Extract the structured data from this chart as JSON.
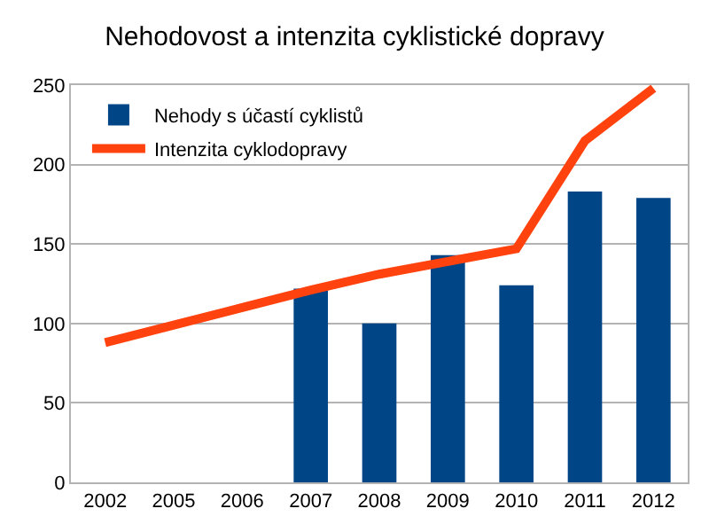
{
  "chart_data": {
    "type": "bar",
    "title": "Nehodovost a intenzita cyklistické dopravy",
    "categories": [
      "2002",
      "2005",
      "2006",
      "2007",
      "2008",
      "2009",
      "2010",
      "2011",
      "2012"
    ],
    "series": [
      {
        "name": "Nehody s účastí cyklistů",
        "color": "#004586",
        "values": [
          null,
          null,
          null,
          122,
          100,
          143,
          124,
          183,
          179
        ]
      },
      {
        "name": "Intenzita cyklodopravy",
        "type": "line",
        "color": "#ff420e",
        "values": [
          88,
          99,
          110,
          121,
          131,
          139,
          147,
          215,
          248
        ]
      }
    ],
    "ylim": [
      0,
      250
    ],
    "yticks": [
      0,
      50,
      100,
      150,
      200,
      250
    ],
    "grid": "y",
    "legend": "top left",
    "marker": "none",
    "line_style": "solid"
  }
}
